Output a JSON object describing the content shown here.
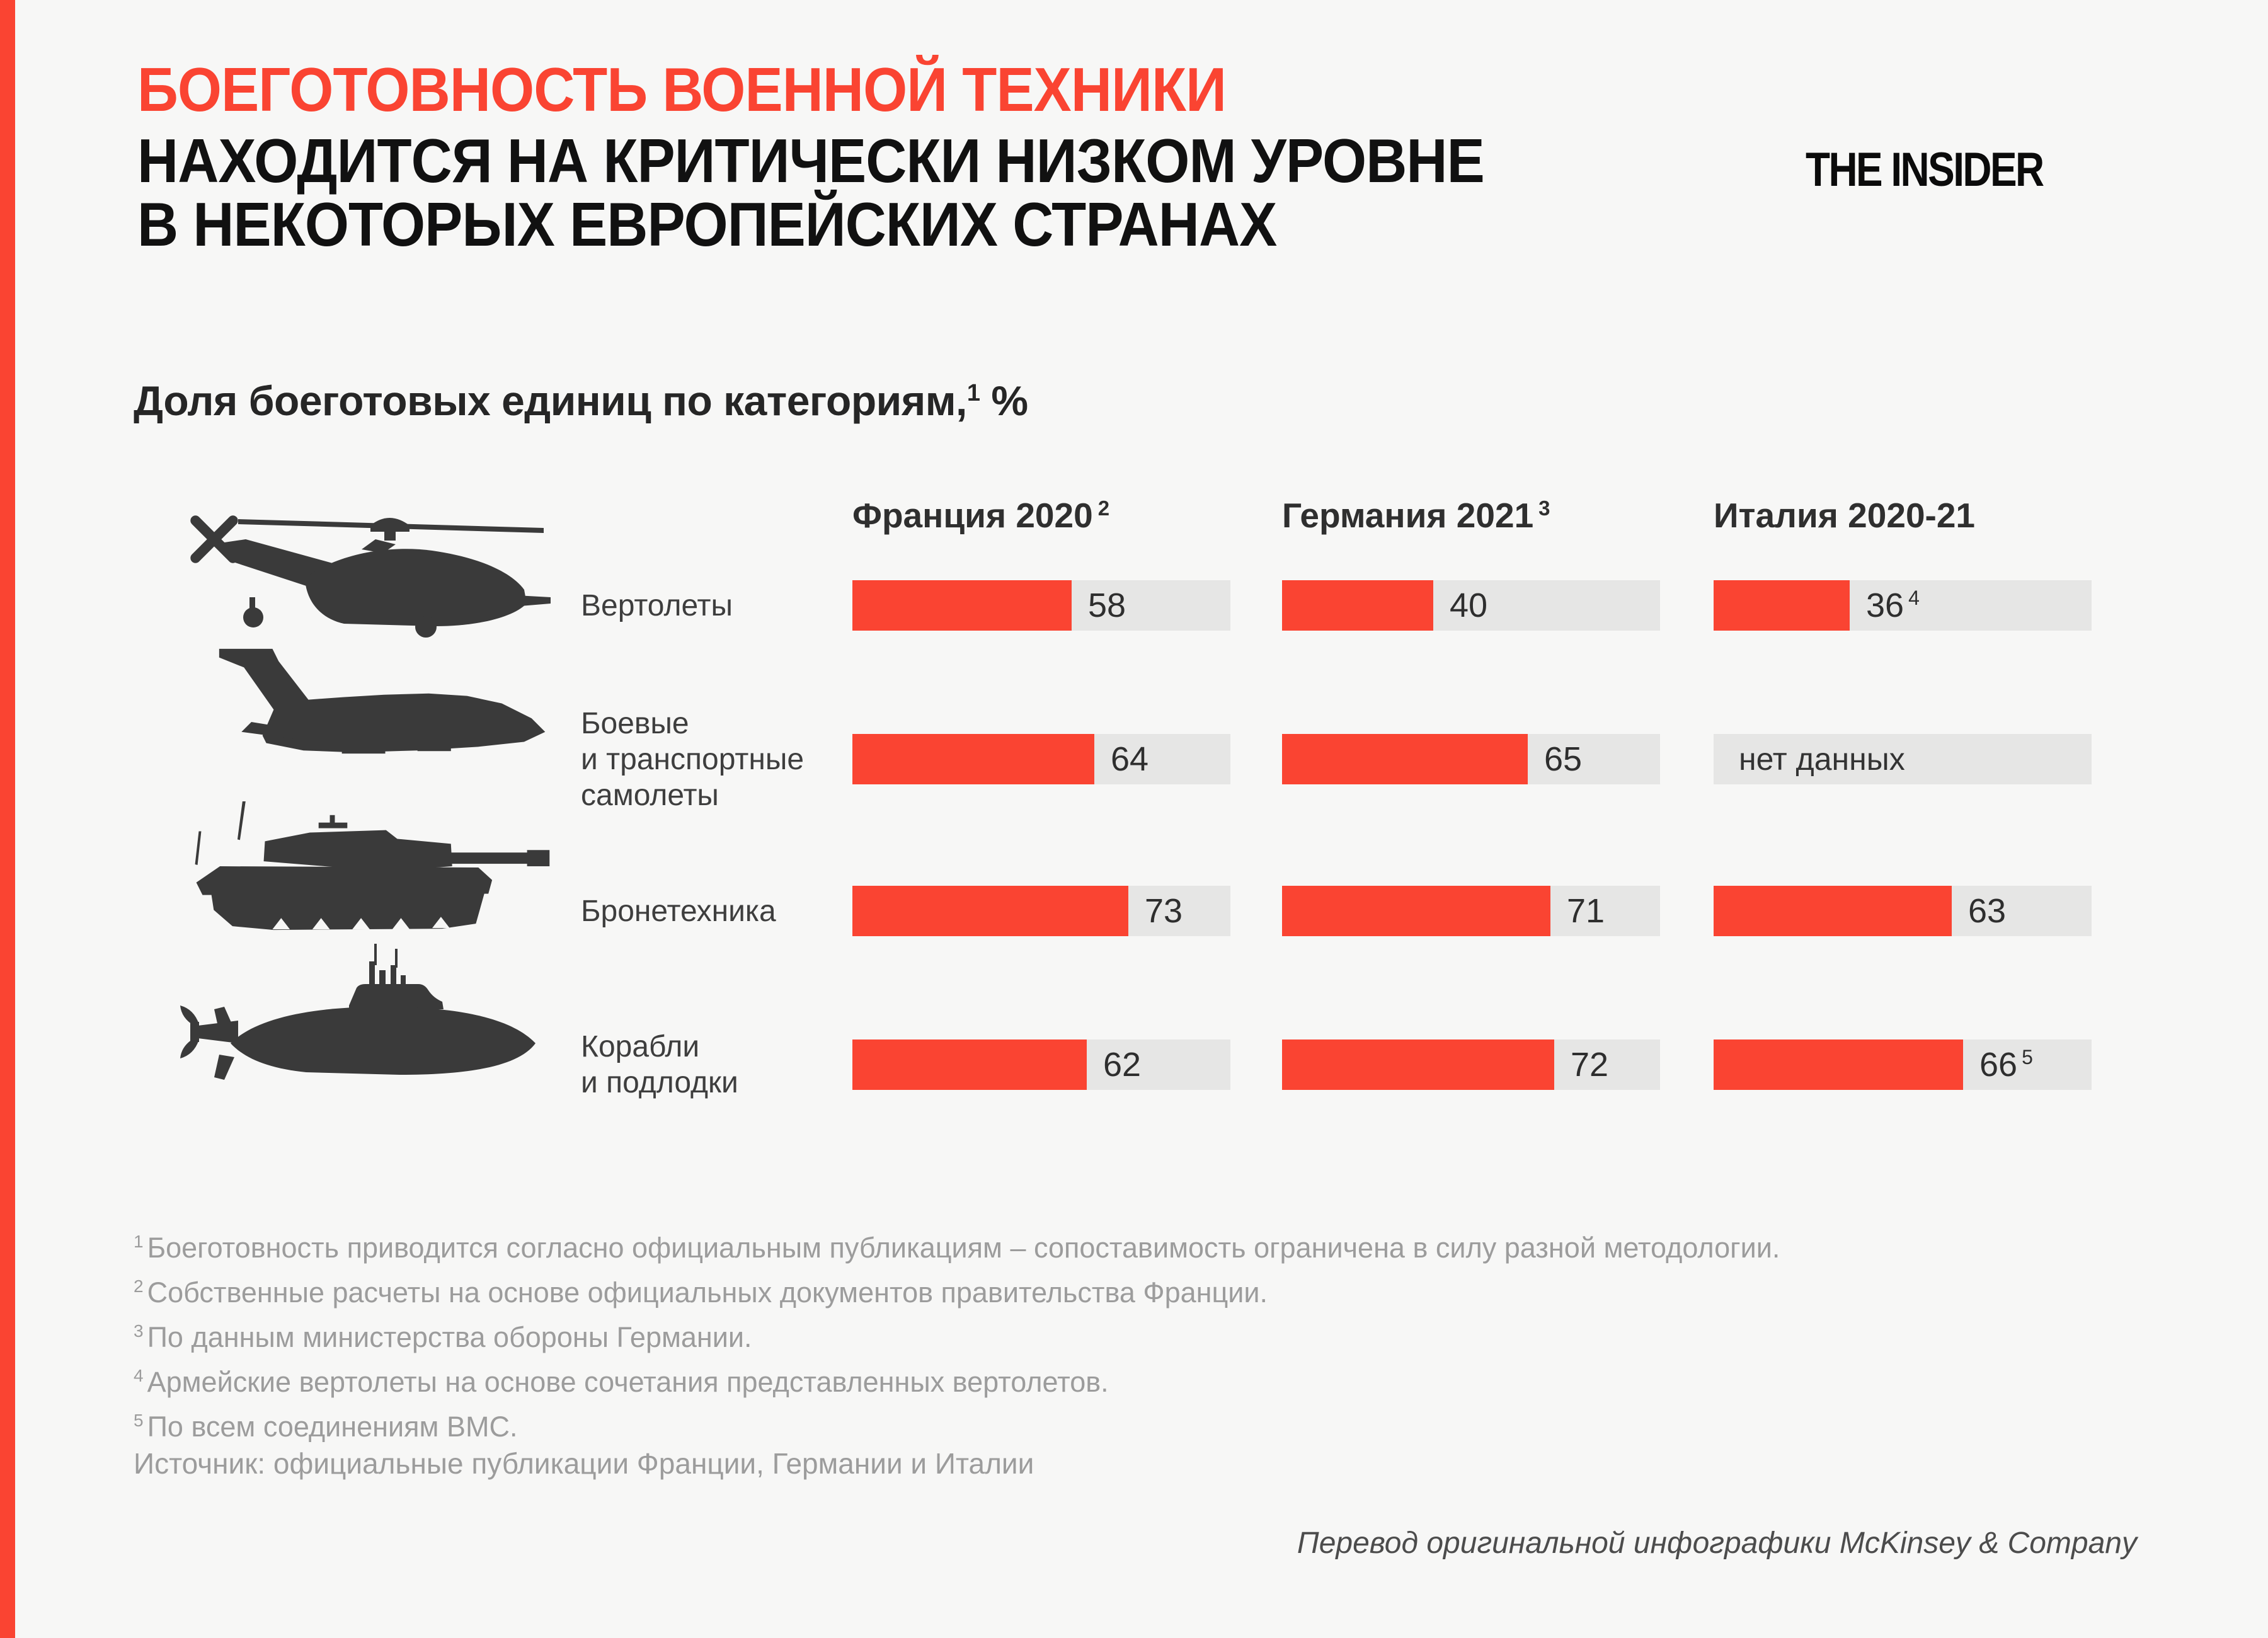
{
  "colors": {
    "bg": "#f7f7f6",
    "accent": "#fa4432",
    "track": "#e6e6e5",
    "icon": "#3a3a3a"
  },
  "header": {
    "title_line1": "БОЕГОТОВНОСТЬ ВОЕННОЙ ТЕХНИКИ",
    "title_line2": "НАХОДИТСЯ НА КРИТИЧЕСКИ НИЗКОМ УРОВНЕ",
    "title_line3": "В НЕКОТОРЫХ ЕВРОПЕЙСКИХ СТРАНАХ",
    "logo": "THE INSIDER"
  },
  "subtitle": {
    "text": "Доля боеготовых единиц по категориям,",
    "sup": "1",
    "unit": " %"
  },
  "chart_data": {
    "type": "bar",
    "unit": "%",
    "xlim": [
      0,
      100
    ],
    "grid": false,
    "bar_color": "#fa4432",
    "track_color": "#e6e6e5",
    "categories": [
      "Вертолеты",
      "Боевые и транспортные самолеты",
      "Бронетехника",
      "Корабли и подлодки"
    ],
    "series": [
      {
        "name": "Франция 2020",
        "values": [
          58,
          64,
          73,
          62
        ]
      },
      {
        "name": "Германия 2021",
        "values": [
          40,
          65,
          71,
          72
        ]
      },
      {
        "name": "Италия 2020-21",
        "values": [
          36,
          null,
          63,
          66
        ]
      }
    ],
    "no_data_label": "нет данных",
    "columns": [
      {
        "label": "Франция 2020",
        "sup": "2"
      },
      {
        "label": "Германия 2021",
        "sup": "3"
      },
      {
        "label": "Италия 2020-21",
        "sup": ""
      }
    ],
    "rows": [
      {
        "icon": "helicopter-icon",
        "label_lines": [
          "Вертолеты",
          "",
          ""
        ],
        "bars": [
          {
            "value": 58,
            "sup": ""
          },
          {
            "value": 40,
            "sup": ""
          },
          {
            "value": 36,
            "sup": "4"
          }
        ]
      },
      {
        "icon": "fighter-jet-icon",
        "label_lines": [
          "Боевые",
          "и транспортные",
          "самолеты"
        ],
        "bars": [
          {
            "value": 64,
            "sup": ""
          },
          {
            "value": 65,
            "sup": ""
          },
          {
            "value": null,
            "sup": ""
          }
        ]
      },
      {
        "icon": "tank-icon",
        "label_lines": [
          "Бронетехника",
          "",
          ""
        ],
        "bars": [
          {
            "value": 73,
            "sup": ""
          },
          {
            "value": 71,
            "sup": ""
          },
          {
            "value": 63,
            "sup": ""
          }
        ]
      },
      {
        "icon": "submarine-icon",
        "label_lines": [
          "Корабли",
          "и подлодки",
          ""
        ],
        "bars": [
          {
            "value": 62,
            "sup": ""
          },
          {
            "value": 72,
            "sup": ""
          },
          {
            "value": 66,
            "sup": "5"
          }
        ]
      }
    ]
  },
  "footnotes": [
    {
      "sup": "1",
      "text": "Боеготовность приводится согласно официальным публикациям – сопоставимость ограничена в силу разной методологии."
    },
    {
      "sup": "2",
      "text": "Собственные расчеты на основе официальных документов правительства Франции."
    },
    {
      "sup": "3",
      "text": "По данным министерства обороны Германии."
    },
    {
      "sup": "4",
      "text": "Армейские вертолеты на основе сочетания представленных вертолетов."
    },
    {
      "sup": "5",
      "text": "По всем соединениям ВМС."
    }
  ],
  "source": "Источник: официальные публикации Франции, Германии и Италии",
  "credit": "Перевод оригинальной инфографики McKinsey & Company"
}
